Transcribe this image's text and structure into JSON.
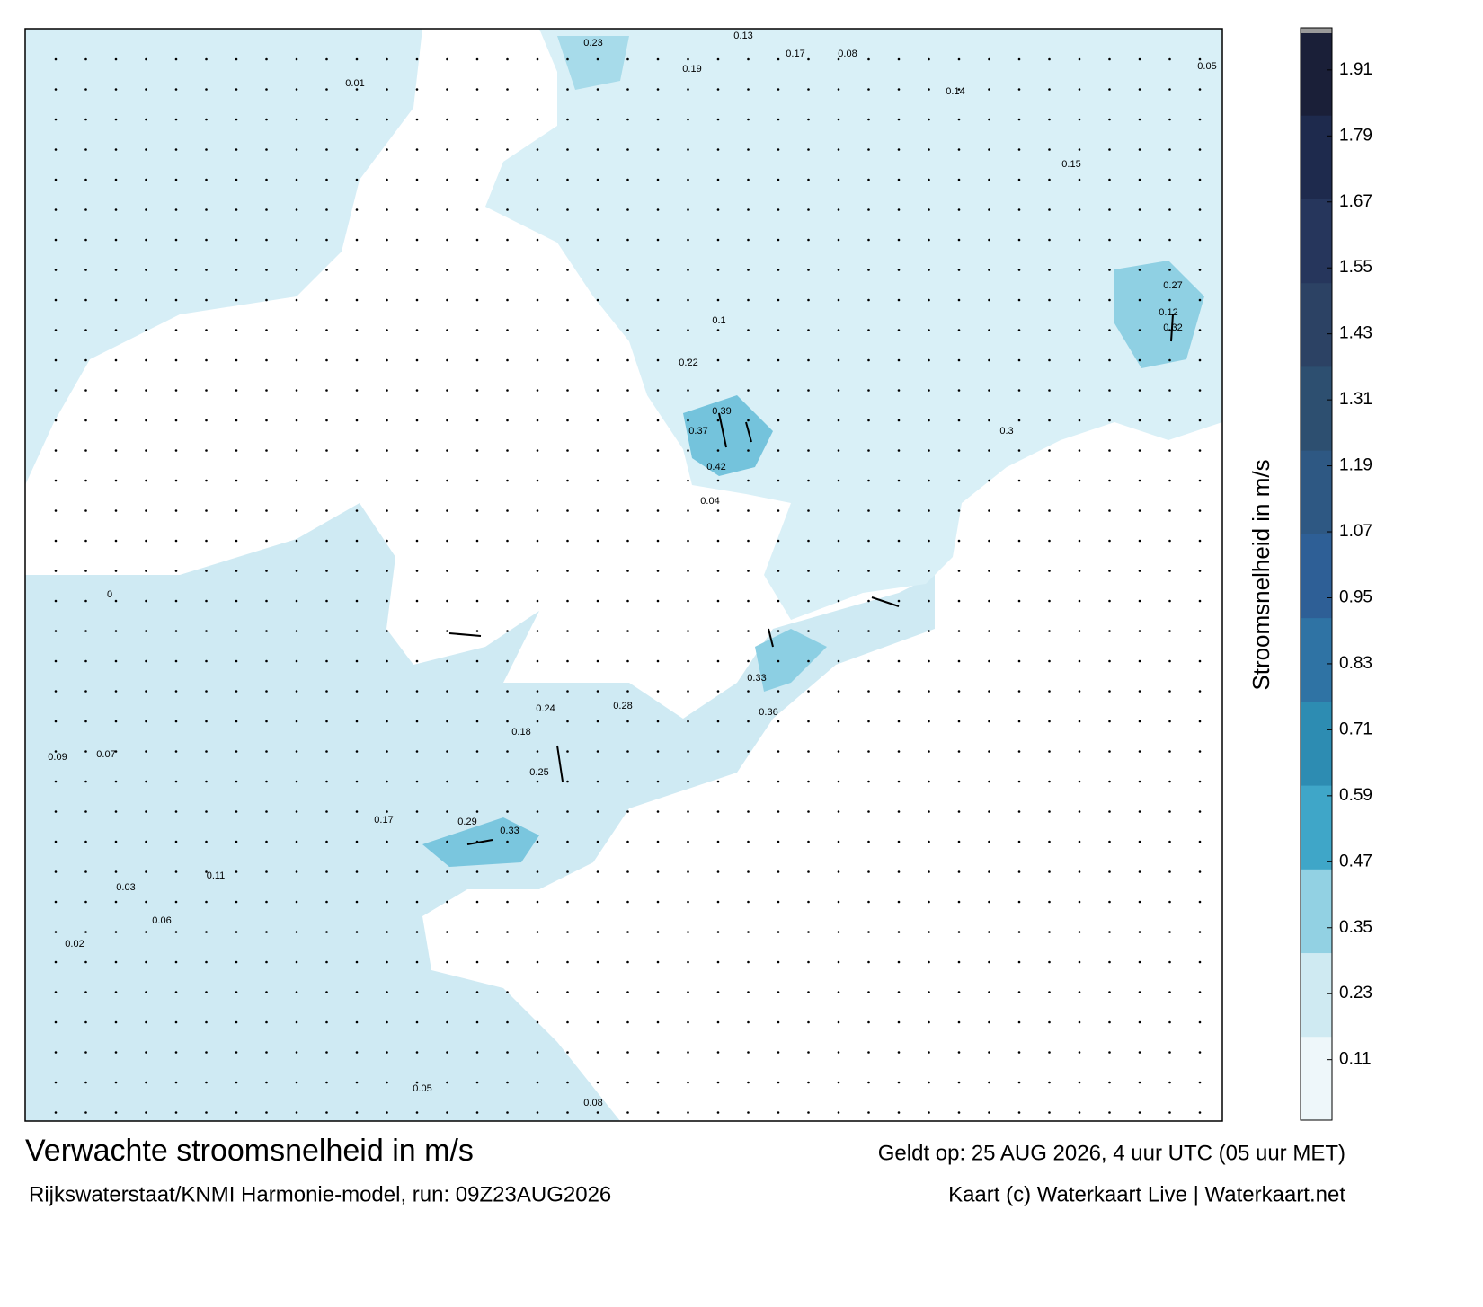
{
  "map": {
    "title": "Verwachte stroomsnelheid in m/s",
    "subtitle": "Rijkswaterstaat/KNMI Harmonie-model, run: 09Z23AUG2026",
    "valid_time": "Geldt op: 25 AUG 2026, 4 uur UTC (05 uur MET)",
    "credit": "Kaart (c) Waterkaart Live | Waterkaart.net",
    "labels": [
      0.23,
      0.13,
      0.17,
      0.39,
      0.42,
      0.37,
      0.33,
      0.36,
      0.25,
      0.33,
      0.29,
      0.32,
      0.27,
      0.12,
      0.19,
      0.14,
      0.08,
      0.05,
      0.09,
      0.07,
      0.11,
      0.17,
      0.18,
      0.22,
      0.3,
      0.28,
      0.24,
      0.15,
      0.02,
      0.08,
      0.05,
      0.06,
      0.04,
      0.1,
      0.03,
      0.01,
      0
    ]
  },
  "colorbar": {
    "label": "Stroomsnelheid in m/s",
    "lim": [
      0,
      1.98
    ],
    "ticks": [
      0.11,
      0.23,
      0.35,
      0.47,
      0.59,
      0.71,
      0.83,
      0.95,
      1.07,
      1.19,
      1.31,
      1.43,
      1.55,
      1.67,
      1.79,
      1.91
    ],
    "colors": [
      "#eef7fa",
      "#cfeaf2",
      "#92d1e3",
      "#3fa6c8",
      "#2d8cb2",
      "#2f73a4",
      "#2e5f96",
      "#2e5883",
      "#2d4f70",
      "#2c4264",
      "#26365c",
      "#1e2a4d",
      "#1a1f38"
    ]
  }
}
